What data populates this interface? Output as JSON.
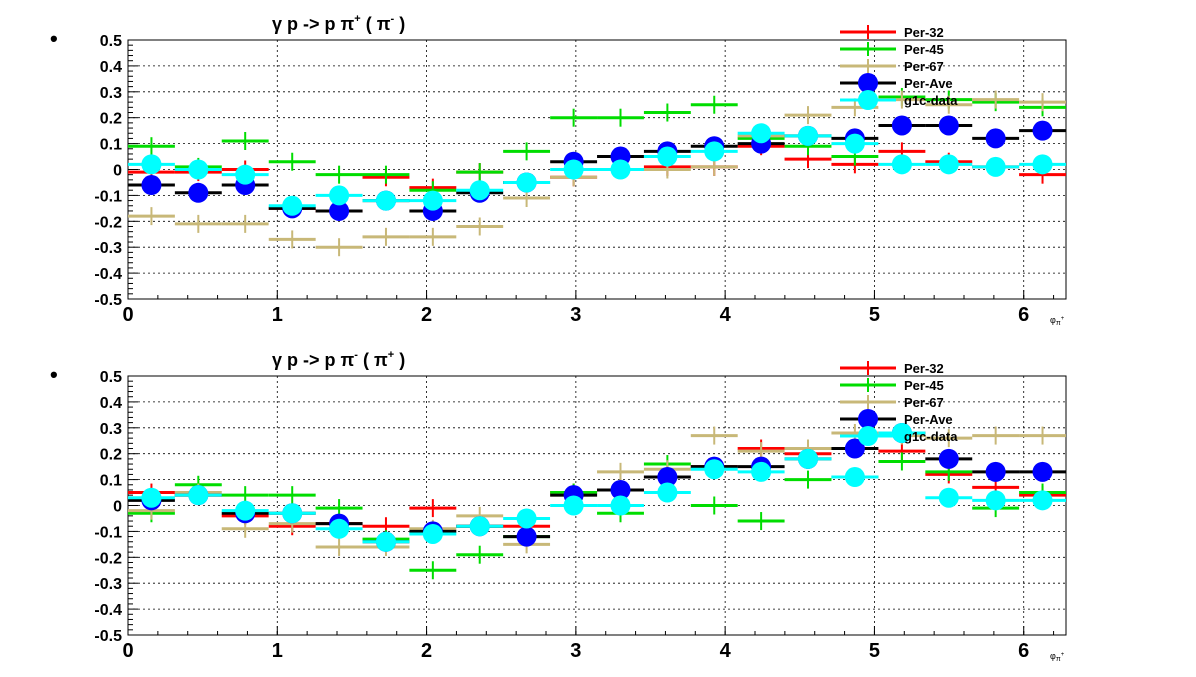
{
  "chart_data": [
    {
      "type": "scatter",
      "title_main": "γ p -> p π",
      "title_sup": "+",
      "title_paren_open": " ( π",
      "title_paren_sup": "-",
      "title_paren_close": " )",
      "ylabel": "•",
      "xlabel_main": "φ",
      "xlabel_sub": "π",
      "xlabel_sup": "+",
      "xlim": [
        0,
        6.2832
      ],
      "ylim": [
        -0.5,
        0.5
      ],
      "x_ticks": [
        0,
        1,
        2,
        3,
        4,
        5,
        6
      ],
      "y_ticks": [
        0.5,
        0.4,
        0.3,
        0.2,
        0.1,
        0,
        -0.1,
        -0.2,
        -0.3,
        -0.4,
        -0.5
      ],
      "x_tick_labels": [
        "0",
        "1",
        "2",
        "3",
        "4",
        "5",
        "6"
      ],
      "y_tick_labels": [
        "0.5",
        "0.4",
        "0.3",
        "0.2",
        "0.1",
        "0",
        "-0.1",
        "-0.2",
        "-0.3",
        "-0.4",
        "-0.5"
      ],
      "grid": true,
      "legend_position": "top-right",
      "x": [
        0.157,
        0.471,
        0.785,
        1.1,
        1.414,
        1.728,
        2.042,
        2.356,
        2.67,
        2.985,
        3.299,
        3.613,
        3.927,
        4.241,
        4.555,
        4.869,
        5.184,
        5.498,
        5.812,
        6.126
      ],
      "series": [
        {
          "name": "Per-32",
          "color": "#ff0000",
          "marker": "cross",
          "values": [
            -0.01,
            -0.01,
            0.0,
            -0.15,
            -0.16,
            -0.03,
            -0.07,
            -0.01,
            -0.05,
            -0.03,
            0.0,
            0.01,
            0.01,
            0.09,
            0.04,
            0.02,
            0.07,
            0.03,
            0.01,
            -0.02
          ]
        },
        {
          "name": "Per-45",
          "color": "#00dd00",
          "marker": "cross",
          "values": [
            0.09,
            0.01,
            0.11,
            0.03,
            -0.02,
            -0.02,
            -0.08,
            -0.01,
            0.07,
            0.2,
            0.2,
            0.22,
            0.25,
            0.12,
            0.09,
            0.05,
            0.28,
            0.27,
            0.26,
            0.24
          ]
        },
        {
          "name": "Per-67",
          "color": "#c8b878",
          "marker": "cross",
          "values": [
            -0.18,
            -0.21,
            -0.21,
            -0.27,
            -0.3,
            -0.26,
            -0.26,
            -0.22,
            -0.11,
            -0.03,
            0.0,
            0.0,
            0.01,
            0.13,
            0.21,
            0.24,
            0.27,
            0.25,
            0.27,
            0.26
          ]
        },
        {
          "name": "Per-Ave",
          "color": "#0000ff",
          "marker": "circle-bar",
          "values": [
            -0.06,
            -0.09,
            -0.06,
            -0.15,
            -0.16,
            -0.12,
            -0.16,
            -0.09,
            -0.05,
            0.03,
            0.05,
            0.07,
            0.09,
            0.1,
            0.13,
            0.12,
            0.17,
            0.17,
            0.12,
            0.15
          ]
        },
        {
          "name": "g1c-data",
          "color": "#00ffff",
          "marker": "circle-bar",
          "values": [
            0.02,
            0.0,
            -0.02,
            -0.14,
            -0.1,
            -0.12,
            -0.12,
            -0.08,
            -0.05,
            0.0,
            0.0,
            0.05,
            0.07,
            0.14,
            0.13,
            0.1,
            0.02,
            0.02,
            0.01,
            0.02
          ]
        }
      ]
    },
    {
      "type": "scatter",
      "title_main": "γ p -> p π",
      "title_sup": "-",
      "title_paren_open": " ( π",
      "title_paren_sup": "+",
      "title_paren_close": " )",
      "ylabel": "•",
      "xlabel_main": "φ",
      "xlabel_sub": "π",
      "xlabel_sup": "+",
      "xlim": [
        0,
        6.2832
      ],
      "ylim": [
        -0.5,
        0.5
      ],
      "x_ticks": [
        0,
        1,
        2,
        3,
        4,
        5,
        6
      ],
      "y_ticks": [
        0.5,
        0.4,
        0.3,
        0.2,
        0.1,
        0,
        -0.1,
        -0.2,
        -0.3,
        -0.4,
        -0.5
      ],
      "x_tick_labels": [
        "0",
        "1",
        "2",
        "3",
        "4",
        "5",
        "6"
      ],
      "y_tick_labels": [
        "0.5",
        "0.4",
        "0.3",
        "0.2",
        "0.1",
        "0",
        "-0.1",
        "-0.2",
        "-0.3",
        "-0.4",
        "-0.5"
      ],
      "grid": true,
      "legend_position": "top-right",
      "x": [
        0.157,
        0.471,
        0.785,
        1.1,
        1.414,
        1.728,
        2.042,
        2.356,
        2.67,
        2.985,
        3.299,
        3.613,
        3.927,
        4.241,
        4.555,
        4.869,
        5.184,
        5.498,
        5.812,
        6.126
      ],
      "series": [
        {
          "name": "Per-32",
          "color": "#ff0000",
          "marker": "cross",
          "values": [
            0.05,
            0.04,
            -0.04,
            -0.08,
            -0.07,
            -0.08,
            -0.01,
            -0.08,
            -0.08,
            0.05,
            0.06,
            0.11,
            0.15,
            0.22,
            0.2,
            0.22,
            0.21,
            0.12,
            0.07,
            0.04
          ]
        },
        {
          "name": "Per-45",
          "color": "#00dd00",
          "marker": "cross",
          "values": [
            -0.03,
            0.08,
            0.04,
            0.04,
            -0.01,
            -0.13,
            -0.25,
            -0.19,
            -0.12,
            0.05,
            -0.03,
            0.16,
            0.0,
            -0.06,
            0.1,
            0.11,
            0.17,
            0.13,
            -0.01,
            0.05
          ]
        },
        {
          "name": "Per-67",
          "color": "#c8b878",
          "marker": "cross",
          "values": [
            -0.02,
            0.05,
            -0.09,
            -0.07,
            -0.16,
            -0.16,
            -0.09,
            -0.04,
            -0.15,
            0.04,
            0.13,
            0.14,
            0.27,
            0.21,
            0.22,
            0.28,
            0.27,
            0.26,
            0.27,
            0.27
          ]
        },
        {
          "name": "Per-Ave",
          "color": "#0000ff",
          "marker": "circle-bar",
          "values": [
            0.02,
            0.04,
            -0.03,
            -0.03,
            -0.07,
            -0.14,
            -0.1,
            -0.08,
            -0.12,
            0.04,
            0.06,
            0.11,
            0.15,
            0.15,
            0.18,
            0.22,
            0.28,
            0.18,
            0.13,
            0.13
          ]
        },
        {
          "name": "g1c-data",
          "color": "#00ffff",
          "marker": "circle-bar",
          "values": [
            0.03,
            0.04,
            -0.02,
            -0.03,
            -0.09,
            -0.14,
            -0.11,
            -0.08,
            -0.05,
            0.0,
            0.0,
            0.05,
            0.14,
            0.13,
            0.18,
            0.11,
            0.28,
            0.03,
            0.02,
            0.02
          ]
        }
      ]
    }
  ]
}
